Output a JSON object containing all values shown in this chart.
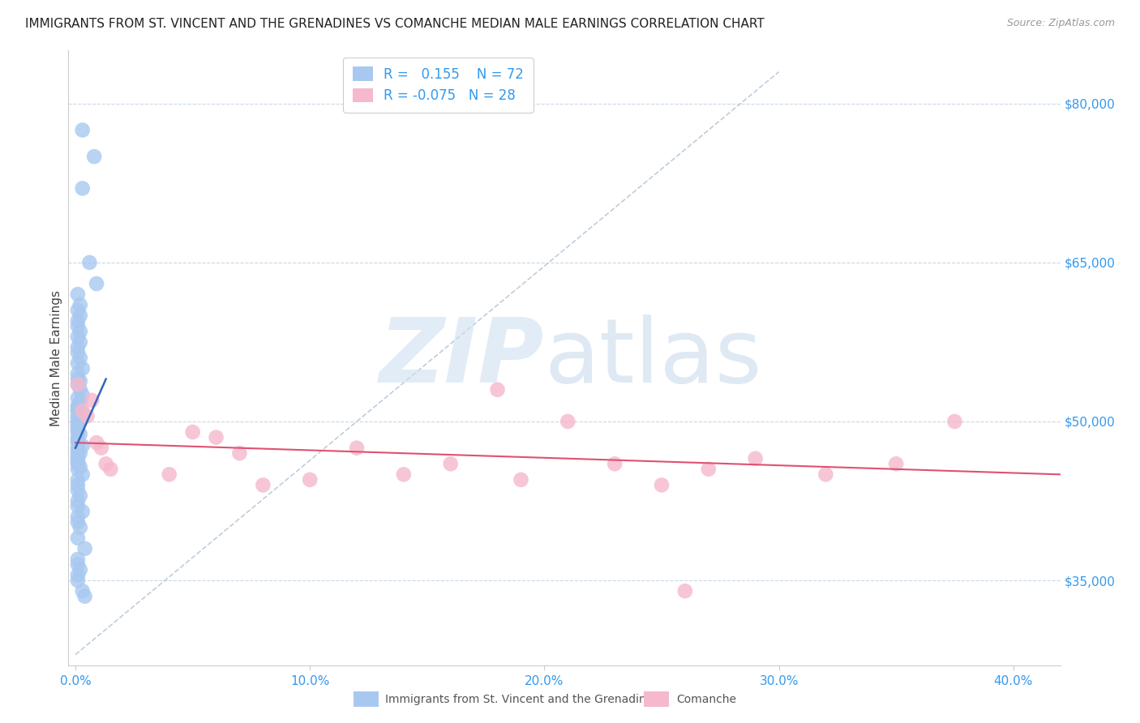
{
  "title": "IMMIGRANTS FROM ST. VINCENT AND THE GRENADINES VS COMANCHE MEDIAN MALE EARNINGS CORRELATION CHART",
  "source": "Source: ZipAtlas.com",
  "ylabel": "Median Male Earnings",
  "xlabel_ticks": [
    "0.0%",
    "10.0%",
    "20.0%",
    "30.0%",
    "40.0%"
  ],
  "xlabel_vals": [
    0.0,
    0.1,
    0.2,
    0.3,
    0.4
  ],
  "ytick_labels": [
    "$35,000",
    "$50,000",
    "$65,000",
    "$80,000"
  ],
  "ytick_vals": [
    35000,
    50000,
    65000,
    80000
  ],
  "ylim": [
    27000,
    85000
  ],
  "xlim": [
    -0.003,
    0.42
  ],
  "r_blue": 0.155,
  "n_blue": 72,
  "r_pink": -0.075,
  "n_pink": 28,
  "blue_color": "#a8c8f0",
  "pink_color": "#f5b8cc",
  "blue_line_color": "#3366bb",
  "pink_line_color": "#e05070",
  "diag_line_color": "#b8c8d8",
  "blue_points_x": [
    0.003,
    0.008,
    0.003,
    0.006,
    0.009,
    0.001,
    0.002,
    0.001,
    0.002,
    0.001,
    0.001,
    0.002,
    0.001,
    0.002,
    0.001,
    0.001,
    0.002,
    0.001,
    0.003,
    0.001,
    0.001,
    0.002,
    0.001,
    0.002,
    0.003,
    0.001,
    0.002,
    0.001,
    0.001,
    0.001,
    0.003,
    0.001,
    0.001,
    0.002,
    0.001,
    0.001,
    0.001,
    0.001,
    0.002,
    0.001,
    0.001,
    0.001,
    0.003,
    0.001,
    0.001,
    0.002,
    0.001,
    0.001,
    0.001,
    0.001,
    0.002,
    0.001,
    0.003,
    0.001,
    0.001,
    0.001,
    0.002,
    0.001,
    0.001,
    0.003,
    0.001,
    0.001,
    0.002,
    0.001,
    0.004,
    0.001,
    0.001,
    0.002,
    0.001,
    0.001,
    0.004,
    0.003
  ],
  "blue_points_y": [
    77500,
    75000,
    72000,
    65000,
    63000,
    62000,
    61000,
    60500,
    60000,
    59500,
    59000,
    58500,
    58000,
    57500,
    57000,
    56500,
    56000,
    55500,
    55000,
    54500,
    54000,
    53800,
    53500,
    53000,
    52500,
    52200,
    51800,
    51500,
    51200,
    51000,
    50800,
    50500,
    50200,
    50000,
    49800,
    49500,
    49200,
    49000,
    48800,
    48500,
    48200,
    48000,
    47700,
    47500,
    47200,
    47000,
    46800,
    46500,
    46200,
    46000,
    45700,
    45500,
    45000,
    44500,
    44000,
    43500,
    43000,
    42500,
    42000,
    41500,
    41000,
    40500,
    40000,
    39000,
    38000,
    37000,
    36500,
    36000,
    35500,
    35000,
    33500,
    34000
  ],
  "pink_points_x": [
    0.001,
    0.003,
    0.005,
    0.007,
    0.009,
    0.011,
    0.013,
    0.015,
    0.04,
    0.05,
    0.06,
    0.07,
    0.08,
    0.1,
    0.12,
    0.14,
    0.16,
    0.18,
    0.21,
    0.23,
    0.25,
    0.27,
    0.29,
    0.32,
    0.35,
    0.375,
    0.19,
    0.26
  ],
  "pink_points_y": [
    53500,
    51000,
    50500,
    52000,
    48000,
    47500,
    46000,
    45500,
    45000,
    49000,
    48500,
    47000,
    44000,
    44500,
    47500,
    45000,
    46000,
    53000,
    50000,
    46000,
    44000,
    45500,
    46500,
    45000,
    46000,
    50000,
    44500,
    34000
  ],
  "blue_line_x": [
    0.0,
    0.013
  ],
  "blue_line_y": [
    47500,
    54000
  ],
  "pink_line_x": [
    0.0,
    0.42
  ],
  "pink_line_y": [
    48000,
    45000
  ],
  "diag_line_x": [
    0.0,
    0.3
  ],
  "diag_line_y": [
    28000,
    83000
  ]
}
